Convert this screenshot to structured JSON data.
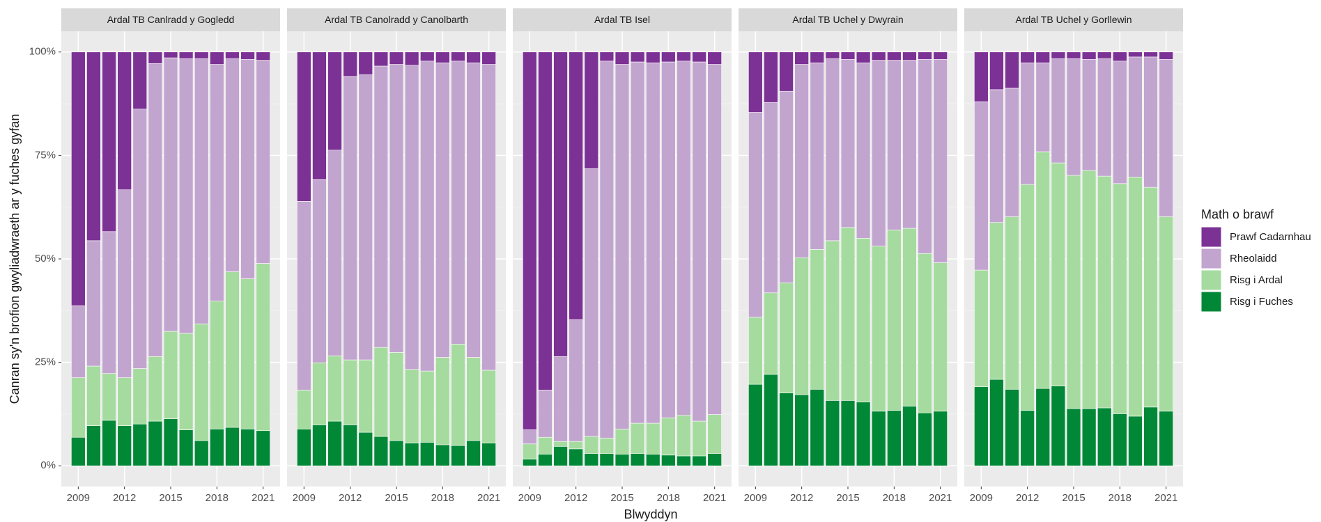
{
  "chart_data": {
    "type": "bar",
    "stacked": true,
    "ylabel": "Canran sy'n brofion gwyliadwraeth ar y fuches gyfan",
    "xlabel": "Blwyddyn",
    "legend_title": "Math o brawf",
    "panels": [
      "Ardal TB Canlradd y Gogledd",
      "Ardal TB Canolradd y Canolbarth",
      "Ardal TB Isel",
      "Ardal TB Uchel y Dwyrain",
      "Ardal TB Uchel y Gorllewin"
    ],
    "x": [
      2009,
      2010,
      2011,
      2012,
      2013,
      2014,
      2015,
      2016,
      2017,
      2018,
      2019,
      2020,
      2021
    ],
    "xlim": [
      2007.9,
      2022.1
    ],
    "xticks": [
      2009,
      2012,
      2015,
      2018,
      2021
    ],
    "ylim": [
      -5,
      105
    ],
    "yticks": [
      {
        "value": 0,
        "label": "0%"
      },
      {
        "value": 25,
        "label": "25%"
      },
      {
        "value": 50,
        "label": "50%"
      },
      {
        "value": 75,
        "label": "75%"
      },
      {
        "value": 100,
        "label": "100%"
      }
    ],
    "grid": true,
    "series": [
      {
        "name": "Prawf Cadarnhau",
        "color": "#7b3294",
        "values": [
          [
            61.3,
            45.6,
            43.4,
            33.3,
            13.8,
            2.8,
            1.4,
            1.6,
            1.6,
            3,
            1.6,
            1.8,
            2
          ],
          [
            36.1,
            30.8,
            23.7,
            5.9,
            5.5,
            3.4,
            3,
            3.2,
            2.2,
            2.6,
            2.2,
            2.6,
            3
          ],
          [
            91.3,
            81.7,
            73.6,
            64.7,
            28.2,
            2.2,
            3,
            2.4,
            2.6,
            2.4,
            2.2,
            2.4,
            3
          ],
          [
            14.6,
            12.2,
            9.5,
            3,
            2.6,
            1.6,
            1.8,
            2.6,
            2,
            2,
            2,
            1.8,
            1.8
          ],
          [
            12,
            9.1,
            8.7,
            2.6,
            2.6,
            1.6,
            1.6,
            1.8,
            1.6,
            2.2,
            1.2,
            1.2,
            1.8
          ]
        ]
      },
      {
        "name": "Rheolaidd",
        "color": "#c2a5cf",
        "values": [
          [
            17.4,
            30.3,
            34.3,
            45.4,
            62.7,
            70.8,
            66.1,
            66.4,
            64.1,
            57.2,
            51.5,
            53,
            49.1
          ],
          [
            45.6,
            44.3,
            49.7,
            68.5,
            68.9,
            68,
            69.6,
            73.5,
            74.9,
            71.2,
            68.4,
            71.2,
            73.9
          ],
          [
            3.4,
            11.4,
            20.5,
            29.4,
            64.7,
            91.1,
            88.1,
            87.3,
            87.1,
            86,
            85.6,
            86.8,
            84.6
          ],
          [
            49.5,
            46,
            46.3,
            46.7,
            45.1,
            44,
            40.6,
            42.4,
            44.9,
            41,
            40.6,
            46.9,
            49.1
          ],
          [
            40.7,
            32.1,
            31.1,
            29.4,
            21.5,
            25.2,
            28.2,
            26.8,
            28.4,
            29.6,
            29,
            31.5,
            38
          ]
        ]
      },
      {
        "name": "Risg i Ardal",
        "color": "#a6dba0",
        "values": [
          [
            14.4,
            14.4,
            11.3,
            11.6,
            13.4,
            15.6,
            21.1,
            23.3,
            28.2,
            30.9,
            37.6,
            36.3,
            40.4
          ],
          [
            9.4,
            15,
            15.8,
            15.7,
            17.5,
            21.5,
            21.3,
            17.8,
            17.2,
            21.1,
            24.5,
            20.1,
            17.6
          ],
          [
            3.7,
            4.1,
            1.2,
            1.8,
            4.1,
            3.7,
            6.1,
            7.3,
            7.5,
            9,
            9.8,
            8.4,
            9.4
          ],
          [
            16.2,
            19.7,
            26.6,
            33.1,
            33.8,
            38.6,
            41.8,
            39.6,
            39.9,
            43.6,
            43,
            38.5,
            35.9
          ],
          [
            28.2,
            37.9,
            41.7,
            54.6,
            57.2,
            53.9,
            56.4,
            57.6,
            56,
            55.6,
            57.8,
            53.1,
            47
          ]
        ]
      },
      {
        "name": "Risg i Fuches",
        "color": "#008837",
        "values": [
          [
            6.9,
            9.7,
            11,
            9.7,
            10.1,
            10.8,
            11.4,
            8.7,
            6.1,
            8.9,
            9.3,
            8.9,
            8.5
          ],
          [
            8.9,
            9.9,
            10.8,
            9.9,
            8.1,
            7.1,
            6.1,
            5.5,
            5.7,
            5.1,
            4.9,
            6.1,
            5.5
          ],
          [
            1.6,
            2.8,
            4.7,
            4.1,
            3,
            3,
            2.8,
            3,
            2.8,
            2.6,
            2.4,
            2.4,
            3
          ],
          [
            19.7,
            22.1,
            17.6,
            17.2,
            18.5,
            15.8,
            15.8,
            15.4,
            13.2,
            13.4,
            14.4,
            12.8,
            13.2
          ],
          [
            19.1,
            20.9,
            18.5,
            13.4,
            18.7,
            19.3,
            13.8,
            13.8,
            14,
            12.6,
            12,
            14.2,
            13.2
          ]
        ]
      }
    ]
  }
}
